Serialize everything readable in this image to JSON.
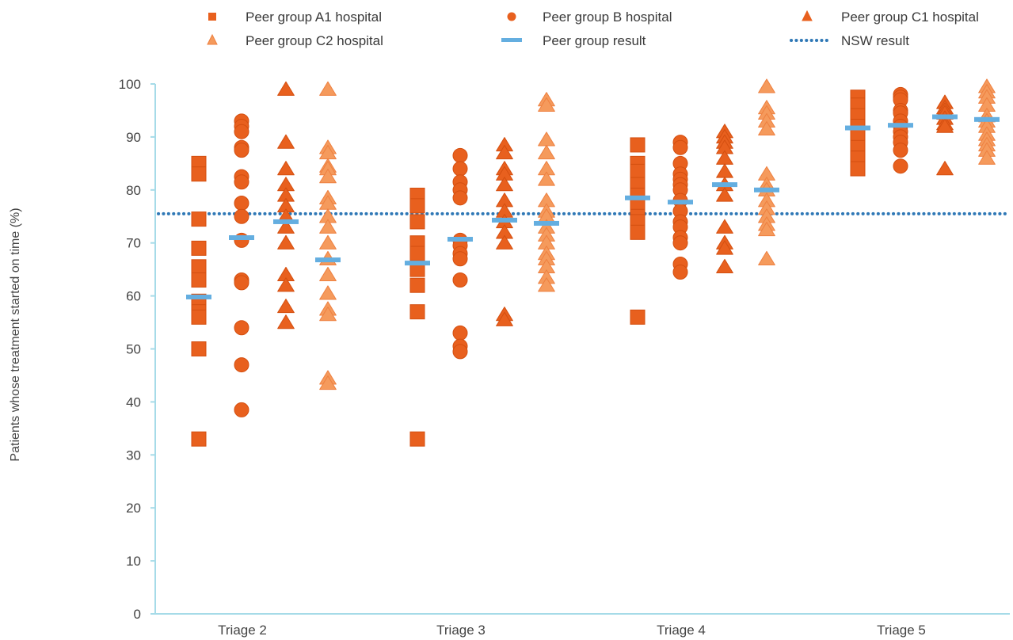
{
  "colors": {
    "a1": "#e8601e",
    "b": "#e8601e",
    "c1": "#e8601e",
    "c2": "#f59a5c",
    "c2_stroke": "#ee8040",
    "peer_result": "#64aee0",
    "nsw": "#2f78b6",
    "axis": "#a6dbe8"
  },
  "legend": [
    {
      "key": "a1",
      "label": "Peer group A1 hospital",
      "marker": "square"
    },
    {
      "key": "b",
      "label": "Peer group B hospital",
      "marker": "circle"
    },
    {
      "key": "c1",
      "label": "Peer group C1 hospital",
      "marker": "triangle"
    },
    {
      "key": "c2",
      "label": "Peer group C2 hospital",
      "marker": "triangle"
    },
    {
      "key": "peer",
      "label": "Peer group result",
      "marker": "dash"
    },
    {
      "key": "nsw",
      "label": "NSW result",
      "marker": "dotted-line"
    }
  ],
  "chart_data": {
    "type": "scatter",
    "ylabel": "Patients whose treatment started on time (%)",
    "ylim": [
      0,
      100
    ],
    "yticks": [
      0,
      10,
      20,
      30,
      40,
      50,
      60,
      70,
      80,
      90,
      100
    ],
    "categories": [
      "Triage 2",
      "Triage 3",
      "Triage 4",
      "Triage 5"
    ],
    "nsw_result": 75.5,
    "series": [
      {
        "name": "Peer group A1 hospital",
        "key": "a1",
        "values": [
          [
            85,
            83,
            74.5,
            69,
            65.5,
            63,
            59,
            57,
            56,
            50,
            33
          ],
          [
            79,
            77,
            74,
            70,
            68,
            65,
            62,
            57,
            33
          ],
          [
            88.5,
            85,
            83.5,
            81,
            79,
            77,
            75,
            74,
            72,
            56
          ],
          [
            97.5,
            96,
            94,
            92,
            90,
            88,
            86,
            84
          ]
        ]
      },
      {
        "name": "Peer group B hospital",
        "key": "b",
        "values": [
          [
            93,
            92,
            91,
            88,
            87.5,
            82.5,
            81.5,
            77.5,
            75,
            70.5,
            63,
            62.5,
            54,
            47,
            38.5
          ],
          [
            86.5,
            84,
            81.5,
            80,
            78.5,
            70.5,
            69.5,
            68,
            67,
            63,
            53,
            50.5,
            49.5
          ],
          [
            89,
            88,
            85,
            83,
            82,
            81,
            80,
            78,
            76,
            74,
            73,
            71,
            70,
            66,
            64.5
          ],
          [
            98,
            97.5,
            97,
            95,
            94.5,
            93,
            92,
            91,
            90,
            89,
            87.5,
            84.5
          ]
        ]
      },
      {
        "name": "Peer group C1 hospital",
        "key": "c1",
        "values": [
          [
            99,
            89,
            84,
            81,
            79,
            77,
            75,
            73,
            70,
            64,
            62,
            58,
            55
          ],
          [
            88.5,
            87,
            84,
            83,
            81,
            78,
            76,
            74,
            72,
            70,
            56.5,
            55.5
          ],
          [
            91,
            90,
            89,
            88,
            86,
            83.5,
            81,
            79,
            73,
            70,
            69,
            65.5
          ],
          [
            96.5,
            95.5,
            95,
            94.5,
            93.5,
            92.5,
            92,
            84
          ]
        ]
      },
      {
        "name": "Peer group C2 hospital",
        "key": "c2",
        "values": [
          [
            99,
            88,
            87,
            84.5,
            84,
            82.5,
            78.5,
            77.5,
            75,
            73,
            70,
            67,
            64,
            60.5,
            57.5,
            56.5,
            44.5,
            43.5
          ],
          [
            97,
            96,
            89.5,
            87,
            84,
            82,
            78,
            76,
            75,
            73,
            71.5,
            70,
            68,
            67,
            65.5,
            63.5,
            62
          ],
          [
            99.5,
            95.5,
            94.5,
            93,
            91.5,
            83,
            81,
            80,
            78,
            76.5,
            75,
            73.5,
            72.5,
            67
          ],
          [
            99.5,
            98.5,
            97.5,
            96,
            94,
            93,
            92,
            90.5,
            89.5,
            88.5,
            87.5,
            86
          ]
        ]
      }
    ],
    "peer_group_results": [
      {
        "series": "Peer group A1 hospital",
        "values": [
          59.8,
          66.2,
          78.5,
          91.7
        ]
      },
      {
        "series": "Peer group B hospital",
        "values": [
          71,
          70.7,
          77.7,
          92.2
        ]
      },
      {
        "series": "Peer group C1 hospital",
        "values": [
          74,
          74.3,
          81,
          93.8
        ]
      },
      {
        "series": "Peer group C2 hospital",
        "values": [
          66.8,
          73.7,
          80,
          93.3
        ]
      }
    ]
  }
}
